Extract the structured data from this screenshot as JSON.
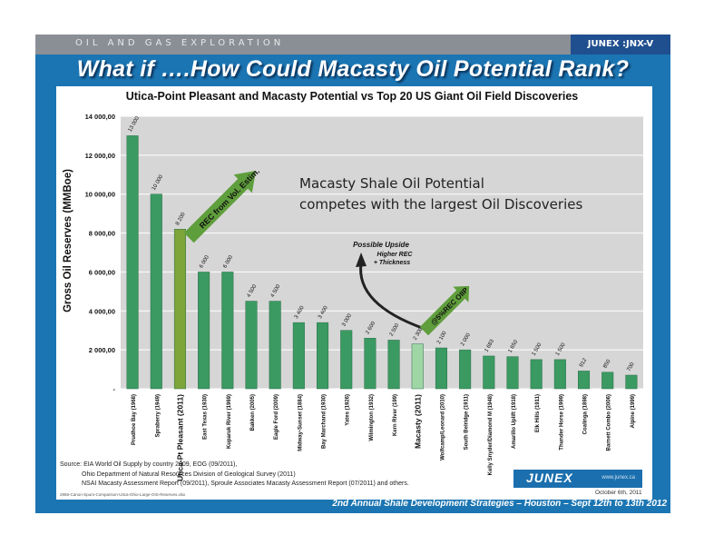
{
  "header": {
    "department": "OIL AND GAS EXPLORATION",
    "ticker": "JUNEX :JNX-V"
  },
  "slide": {
    "headline": "What if ….How Could Macasty Oil Potential Rank?",
    "footer": "2nd Annual Shale Development Strategies – Houston – Sept 12th to 13th 2012"
  },
  "colors": {
    "frame": "#1b75b2",
    "bar": "#3a9a62",
    "highlight_bar": "#7da53a",
    "macasty_bar": "#9fd6a6",
    "plot_bg": "#d6d6d6",
    "callout_arrow": "#5f9e3c"
  },
  "chart_data": {
    "type": "bar",
    "title": "Utica-Point Pleasant and Macasty Potential vs Top 20 US Giant Oil Field Discoveries",
    "ylabel": "Gross Oil Reserves (MMBoe)",
    "xlabel": "",
    "ylim": [
      0,
      14000
    ],
    "yticks": [
      "-",
      "2 000,00",
      "4 000,00",
      "6 000,00",
      "8 000,00",
      "10 000,00",
      "12 000,00",
      "14 000,00"
    ],
    "grid": true,
    "categories": [
      "Prudhoe Bay (1968)",
      "Spraberry (1949)",
      "Utica-Pt Pleasant (2011)",
      "East Texas (1930)",
      "Kuparuk River (1969)",
      "Bakken (2005)",
      "Eagle Ford (2009)",
      "Midway-Sunset (1884)",
      "Bay Marchand (1930)",
      "Yates (1926)",
      "Wilmington (1932)",
      "Kern River (199)",
      "Macasty (2011)",
      "Wolfcamp/Leonard (2010)",
      "South Belridge (1911)",
      "Kelly Snyder/Diamond M (1948)",
      "Amarillo Uplift (1918)",
      "Elk Hills (1911)",
      "Thunder Horse (1999)",
      "Coalinga (1898)",
      "Barnett Combo (2006)",
      "Alpine (1999)"
    ],
    "values": [
      13000,
      10000,
      8200,
      6000,
      6000,
      4500,
      4500,
      3400,
      3400,
      3000,
      2600,
      2500,
      2300,
      2100,
      2000,
      1683,
      1650,
      1500,
      1500,
      912,
      850,
      700
    ],
    "value_labels": [
      "13 000",
      "10 000",
      "8 200",
      "6 000",
      "6 000",
      "4 500",
      "4 500",
      "3 400",
      "3 400",
      "3 000",
      "2 600",
      "2 500",
      "2 300",
      "2 100",
      "2 000",
      "1 683",
      "1 650",
      "1 500",
      "1 500",
      "912",
      "850",
      "700"
    ],
    "highlight_index": 2,
    "macasty_index": 12,
    "annotations": {
      "callout_rec": "REC from Vol. Estim.",
      "callout_oiip": "@5%REC OIIP",
      "big_text_line1": "Macasty Shale Oil Potential",
      "big_text_line2": "competes with the largest Oil Discoveries",
      "upside_title": "Possible Upside",
      "upside_line1": "Higher REC",
      "upside_line2": "+ Thickness"
    }
  },
  "sources": {
    "line1": "Source: EIA World Oil Supply by country 2009, EOG (09/2011),",
    "line2": "Ohio Department of Natural Resources Division of Geological Survey (2011)",
    "line3": "NSAI Macasty Assessment Report (09/2011), Sproule Associates Macasty Assessment Report (07/2011) and others.",
    "file": "2958-Canon-Spurs-Comparison-Utica-Ohio-Large-OIS-Reserves.xlsx",
    "date": "October 6th, 2011"
  },
  "logo": {
    "name": "JUNEX",
    "url": "www.junex.ca"
  }
}
